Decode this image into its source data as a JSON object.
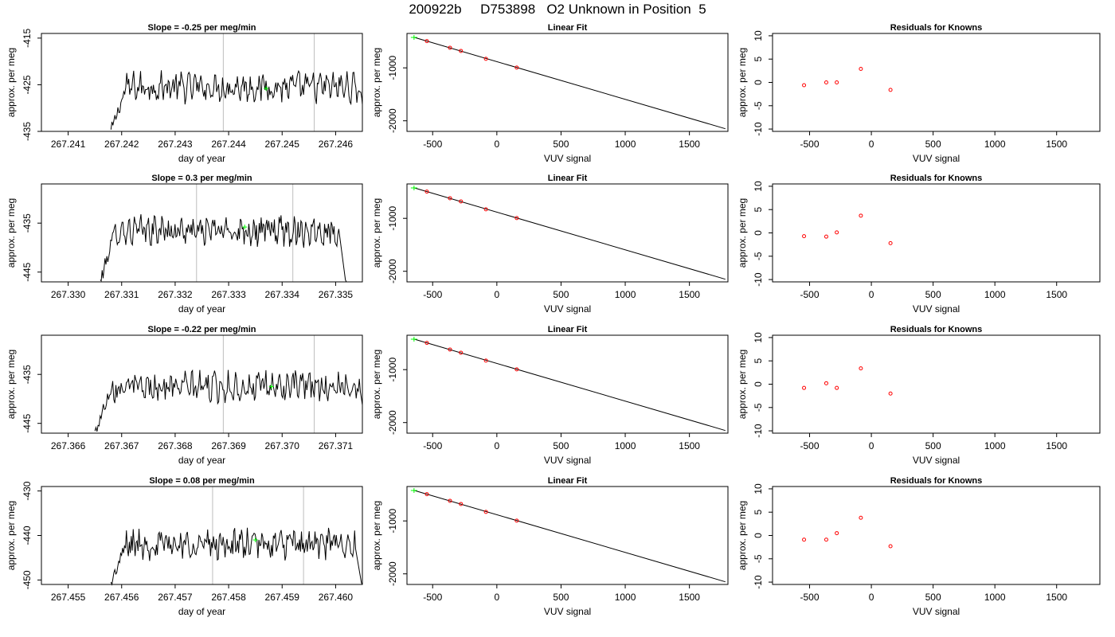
{
  "figure": {
    "title": "200922b     D753898   O2 Unknown in Position  5"
  },
  "rows": [
    {
      "time_panel": {
        "title": "Slope =  -0.25  per meg/min",
        "xlabel": "day of year",
        "ylabel": "approx. per meg",
        "xticks": [
          "267.241",
          "267.242",
          "267.243",
          "267.244",
          "267.245",
          "267.246"
        ],
        "yticks": [
          "-415",
          "-425",
          "-435"
        ]
      },
      "fit_panel": {
        "title": "Linear Fit",
        "xlabel": "VUV signal",
        "ylabel": "approx. per meg",
        "xticks": [
          "-500",
          "0",
          "500",
          "1000",
          "1500"
        ],
        "yticks": [
          "-1000",
          "-2000"
        ]
      },
      "resid_panel": {
        "title": "Residuals for Knowns",
        "xlabel": "VUV signal",
        "ylabel": "approx. per meg",
        "xticks": [
          "-500",
          "0",
          "500",
          "1000",
          "1500"
        ],
        "yticks": [
          "10",
          "5",
          "0",
          "-5",
          "-10"
        ]
      }
    },
    {
      "time_panel": {
        "title": "Slope =  0.3  per meg/min",
        "xlabel": "day of year",
        "ylabel": "approx. per meg",
        "xticks": [
          "267.330",
          "267.331",
          "267.332",
          "267.333",
          "267.334",
          "267.335"
        ],
        "yticks": [
          "-435",
          "-445"
        ]
      },
      "fit_panel": {
        "title": "Linear Fit",
        "xlabel": "VUV signal",
        "ylabel": "approx. per meg",
        "xticks": [
          "-500",
          "0",
          "500",
          "1000",
          "1500"
        ],
        "yticks": [
          "-1000",
          "-2000"
        ]
      },
      "resid_panel": {
        "title": "Residuals for Knowns",
        "xlabel": "VUV signal",
        "ylabel": "approx. per meg",
        "xticks": [
          "-500",
          "0",
          "500",
          "1000",
          "1500"
        ],
        "yticks": [
          "10",
          "5",
          "0",
          "-5",
          "-10"
        ]
      }
    },
    {
      "time_panel": {
        "title": "Slope =  -0.22  per meg/min",
        "xlabel": "day of year",
        "ylabel": "approx. per meg",
        "xticks": [
          "267.366",
          "267.367",
          "267.368",
          "267.369",
          "267.370",
          "267.371"
        ],
        "yticks": [
          "-435",
          "-445"
        ]
      },
      "fit_panel": {
        "title": "Linear Fit",
        "xlabel": "VUV signal",
        "ylabel": "approx. per meg",
        "xticks": [
          "-500",
          "0",
          "500",
          "1000",
          "1500"
        ],
        "yticks": [
          "-1000",
          "-2000"
        ]
      },
      "resid_panel": {
        "title": "Residuals for Knowns",
        "xlabel": "VUV signal",
        "ylabel": "approx. per meg",
        "xticks": [
          "-500",
          "0",
          "500",
          "1000",
          "1500"
        ],
        "yticks": [
          "10",
          "5",
          "0",
          "-5",
          "-10"
        ]
      }
    },
    {
      "time_panel": {
        "title": "Slope =  0.08  per meg/min",
        "xlabel": "day of year",
        "ylabel": "approx. per meg",
        "xticks": [
          "267.455",
          "267.456",
          "267.457",
          "267.458",
          "267.459",
          "267.460"
        ],
        "yticks": [
          "-430",
          "-440",
          "-450"
        ]
      },
      "fit_panel": {
        "title": "Linear Fit",
        "xlabel": "VUV signal",
        "ylabel": "approx. per meg",
        "xticks": [
          "-500",
          "0",
          "500",
          "1000",
          "1500"
        ],
        "yticks": [
          "-1000",
          "-2000"
        ]
      },
      "resid_panel": {
        "title": "Residuals for Knowns",
        "xlabel": "VUV signal",
        "ylabel": "approx. per meg",
        "xticks": [
          "-500",
          "0",
          "500",
          "1000",
          "1500"
        ],
        "yticks": [
          "10",
          "5",
          "0",
          "-5",
          "-10"
        ]
      }
    }
  ],
  "chart_data": [
    {
      "type": "line",
      "panel": "time-series-row-1",
      "title": "Slope =  -0.25  per meg/min",
      "xlabel": "day of year",
      "ylabel": "approx. per meg",
      "xlim": [
        267.2405,
        267.2465
      ],
      "ylim": [
        -435,
        -414
      ],
      "x_start": 267.2418,
      "x_end": 267.2466,
      "level": -425.5,
      "noise_amplitude": 2.5,
      "window_start": 267.2439,
      "window_end": 267.2456,
      "window_mean": {
        "x": 267.2447,
        "y": -425.8
      },
      "colors": {
        "trace": "#000000",
        "window": "#bebebe",
        "mean": "#00ff00"
      }
    },
    {
      "type": "scatter",
      "panel": "linear-fit-row-1",
      "title": "Linear Fit",
      "xlabel": "VUV signal",
      "ylabel": "approx. per meg",
      "xlim": [
        -700,
        1800
      ],
      "ylim": [
        -2200,
        -350
      ],
      "fit_line": {
        "x0": -650,
        "y0": -420,
        "x1": 1780,
        "y1": -2150
      },
      "knowns": [
        {
          "x": -545,
          "y": -495
        },
        {
          "x": -365,
          "y": -620
        },
        {
          "x": -280,
          "y": -680
        },
        {
          "x": -85,
          "y": -830
        },
        {
          "x": 155,
          "y": -995
        }
      ],
      "unknown": {
        "x": -645,
        "y": -425
      },
      "colors": {
        "line": "#000000",
        "knowns": "#ff0000",
        "unknown": "#00ff00"
      }
    },
    {
      "type": "scatter",
      "panel": "residuals-row-1",
      "title": "Residuals for Knowns",
      "xlabel": "VUV signal",
      "ylabel": "approx. per meg",
      "xlim": [
        -800,
        1850
      ],
      "ylim": [
        -10.5,
        10.5
      ],
      "points": [
        {
          "x": -545,
          "y": -0.6
        },
        {
          "x": -365,
          "y": 0.0
        },
        {
          "x": -280,
          "y": 0.0
        },
        {
          "x": -85,
          "y": 2.9
        },
        {
          "x": 155,
          "y": -1.6
        }
      ],
      "colors": {
        "points": "#ff0000"
      }
    },
    {
      "type": "line",
      "panel": "time-series-row-2",
      "title": "Slope =  0.3  per meg/min",
      "xlabel": "day of year",
      "ylabel": "approx. per meg",
      "xlim": [
        267.3295,
        267.3355
      ],
      "ylim": [
        -447,
        -427
      ],
      "x_start": 267.3306,
      "x_end": 267.3352,
      "level": -436.5,
      "noise_amplitude": 2.4,
      "window_start": 267.3324,
      "window_end": 267.3342,
      "window_mean": {
        "x": 267.3333,
        "y": -435.8
      },
      "colors": {
        "trace": "#000000",
        "window": "#bebebe",
        "mean": "#00ff00"
      }
    },
    {
      "type": "scatter",
      "panel": "linear-fit-row-2",
      "title": "Linear Fit",
      "xlabel": "VUV signal",
      "ylabel": "approx. per meg",
      "xlim": [
        -700,
        1800
      ],
      "ylim": [
        -2200,
        -350
      ],
      "fit_line": {
        "x0": -650,
        "y0": -420,
        "x1": 1780,
        "y1": -2150
      },
      "knowns": [
        {
          "x": -545,
          "y": -495
        },
        {
          "x": -365,
          "y": -620
        },
        {
          "x": -280,
          "y": -680
        },
        {
          "x": -85,
          "y": -830
        },
        {
          "x": 155,
          "y": -995
        }
      ],
      "unknown": {
        "x": -645,
        "y": -425
      },
      "colors": {
        "line": "#000000",
        "knowns": "#ff0000",
        "unknown": "#00ff00"
      }
    },
    {
      "type": "scatter",
      "panel": "residuals-row-2",
      "title": "Residuals for Knowns",
      "xlabel": "VUV signal",
      "ylabel": "approx. per meg",
      "xlim": [
        -800,
        1850
      ],
      "ylim": [
        -10.5,
        10.5
      ],
      "points": [
        {
          "x": -545,
          "y": -0.7
        },
        {
          "x": -365,
          "y": -0.8
        },
        {
          "x": -280,
          "y": 0.1
        },
        {
          "x": -85,
          "y": 3.7
        },
        {
          "x": 155,
          "y": -2.2
        }
      ],
      "colors": {
        "points": "#ff0000"
      }
    },
    {
      "type": "line",
      "panel": "time-series-row-3",
      "title": "Slope =  -0.22  per meg/min",
      "xlabel": "day of year",
      "ylabel": "approx. per meg",
      "xlim": [
        267.3655,
        267.3715
      ],
      "ylim": [
        -447,
        -427
      ],
      "x_start": 267.3665,
      "x_end": 267.3716,
      "level": -437.5,
      "noise_amplitude": 2.4,
      "window_start": 267.3689,
      "window_end": 267.3706,
      "window_mean": {
        "x": 267.3698,
        "y": -437.5
      },
      "colors": {
        "trace": "#000000",
        "window": "#bebebe",
        "mean": "#00ff00"
      }
    },
    {
      "type": "scatter",
      "panel": "linear-fit-row-3",
      "title": "Linear Fit",
      "xlabel": "VUV signal",
      "ylabel": "approx. per meg",
      "xlim": [
        -700,
        1800
      ],
      "ylim": [
        -2200,
        -350
      ],
      "fit_line": {
        "x0": -650,
        "y0": -420,
        "x1": 1780,
        "y1": -2150
      },
      "knowns": [
        {
          "x": -545,
          "y": -495
        },
        {
          "x": -365,
          "y": -620
        },
        {
          "x": -280,
          "y": -680
        },
        {
          "x": -85,
          "y": -830
        },
        {
          "x": 155,
          "y": -995
        }
      ],
      "unknown": {
        "x": -645,
        "y": -425
      },
      "colors": {
        "line": "#000000",
        "knowns": "#ff0000",
        "unknown": "#00ff00"
      }
    },
    {
      "type": "scatter",
      "panel": "residuals-row-3",
      "title": "Residuals for Knowns",
      "xlabel": "VUV signal",
      "ylabel": "approx. per meg",
      "xlim": [
        -800,
        1850
      ],
      "ylim": [
        -10.5,
        10.5
      ],
      "points": [
        {
          "x": -545,
          "y": -0.8
        },
        {
          "x": -365,
          "y": 0.2
        },
        {
          "x": -280,
          "y": -0.8
        },
        {
          "x": -85,
          "y": 3.4
        },
        {
          "x": 155,
          "y": -2.0
        }
      ],
      "colors": {
        "points": "#ff0000"
      }
    },
    {
      "type": "line",
      "panel": "time-series-row-4",
      "title": "Slope =  0.08  per meg/min",
      "xlabel": "day of year",
      "ylabel": "approx. per meg",
      "xlim": [
        267.4545,
        267.4605
      ],
      "ylim": [
        -451,
        -429
      ],
      "x_start": 267.4558,
      "x_end": 267.4605,
      "level": -442.0,
      "noise_amplitude": 2.6,
      "window_start": 267.4577,
      "window_end": 267.4594,
      "window_mean": {
        "x": 267.4585,
        "y": -441.0
      },
      "colors": {
        "trace": "#000000",
        "window": "#bebebe",
        "mean": "#00ff00"
      }
    },
    {
      "type": "scatter",
      "panel": "linear-fit-row-4",
      "title": "Linear Fit",
      "xlabel": "VUV signal",
      "ylabel": "approx. per meg",
      "xlim": [
        -700,
        1800
      ],
      "ylim": [
        -2200,
        -350
      ],
      "fit_line": {
        "x0": -650,
        "y0": -420,
        "x1": 1780,
        "y1": -2150
      },
      "knowns": [
        {
          "x": -545,
          "y": -495
        },
        {
          "x": -365,
          "y": -620
        },
        {
          "x": -280,
          "y": -680
        },
        {
          "x": -85,
          "y": -830
        },
        {
          "x": 155,
          "y": -995
        }
      ],
      "unknown": {
        "x": -645,
        "y": -425
      },
      "colors": {
        "line": "#000000",
        "knowns": "#ff0000",
        "unknown": "#00ff00"
      }
    },
    {
      "type": "scatter",
      "panel": "residuals-row-4",
      "title": "Residuals for Knowns",
      "xlabel": "VUV signal",
      "ylabel": "approx. per meg",
      "xlim": [
        -800,
        1850
      ],
      "ylim": [
        -10.5,
        10.5
      ],
      "points": [
        {
          "x": -545,
          "y": -0.9
        },
        {
          "x": -365,
          "y": -0.9
        },
        {
          "x": -280,
          "y": 0.5
        },
        {
          "x": -85,
          "y": 3.8
        },
        {
          "x": 155,
          "y": -2.3
        }
      ],
      "colors": {
        "points": "#ff0000"
      }
    }
  ]
}
